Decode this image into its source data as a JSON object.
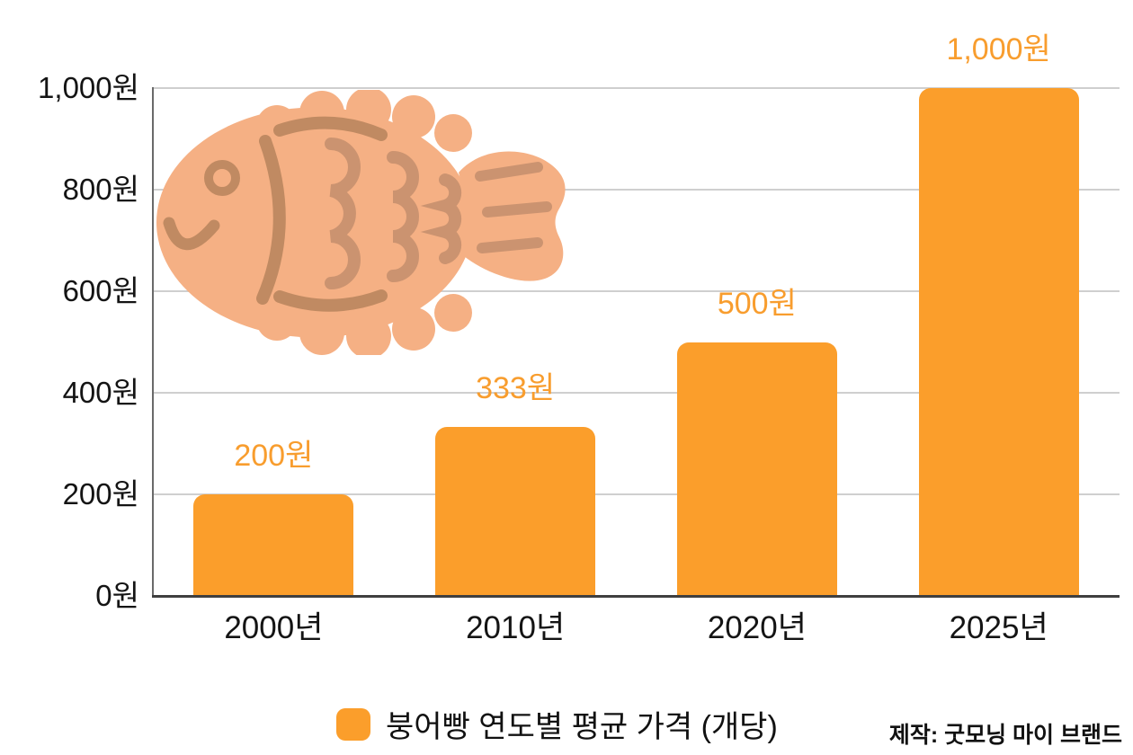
{
  "page": {
    "background": "#FFFFFF"
  },
  "chart_data": {
    "type": "bar",
    "title": "",
    "categories": [
      "2000년",
      "2010년",
      "2020년",
      "2025년"
    ],
    "values": [
      200,
      333,
      500,
      1000
    ],
    "value_labels": [
      "200원",
      "333원",
      "500원",
      "1,000원"
    ],
    "series_name": "붕어빵 연도별 평균 가격 (개당)",
    "xlabel": "",
    "ylabel": "",
    "ylim": [
      0,
      1000
    ],
    "y_ticks": [
      {
        "value": 0,
        "label": "0원"
      },
      {
        "value": 200,
        "label": "200원"
      },
      {
        "value": 400,
        "label": "400원"
      },
      {
        "value": 600,
        "label": "600원"
      },
      {
        "value": 800,
        "label": "800원"
      },
      {
        "value": 1000,
        "label": "1,000원"
      }
    ],
    "grid": true,
    "legend_position": "bottom",
    "bar_color": "#FB9E2B",
    "value_label_color": "#F89D2E"
  },
  "legend": {
    "label": "붕어빵 연도별 평균 가격 (개당)",
    "swatch_color": "#FB9E2B"
  },
  "credit": {
    "text": "제작: 굿모닝 마이 브랜드"
  },
  "illustration": {
    "name": "bungeoppang-fish",
    "body_color": "#F5B084",
    "detail_color": "#C08A62",
    "scale_color": "#CB9370"
  }
}
